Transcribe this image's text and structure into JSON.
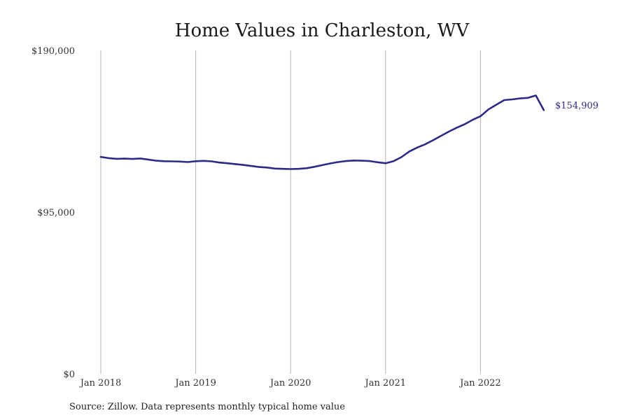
{
  "source_note": "Source: Zillow. Data represents monthly typical home value",
  "colors": {
    "line": "#2e2a87",
    "grid": "#b5b5b5",
    "text": "#222222"
  },
  "chart_data": {
    "type": "line",
    "title": "Home Values in Charleston, WV",
    "xlabel": "",
    "ylabel": "",
    "ylim": [
      0,
      190000
    ],
    "y_ticks": [
      0,
      95000,
      190000
    ],
    "y_tick_labels": [
      "$0",
      "$95,000",
      "$190,000"
    ],
    "x_ticks": [
      "2018-01",
      "2019-01",
      "2020-01",
      "2021-01",
      "2022-01"
    ],
    "x_tick_labels": [
      "Jan 2018",
      "Jan 2019",
      "Jan 2020",
      "Jan 2021",
      "Jan 2022"
    ],
    "grid": "vertical",
    "end_value_label": "$154,909",
    "series": [
      {
        "x": [
          "2018-01",
          "2018-02",
          "2018-03",
          "2018-04",
          "2018-05",
          "2018-06",
          "2018-07",
          "2018-08",
          "2018-09",
          "2018-10",
          "2018-11",
          "2018-12",
          "2019-01",
          "2019-02",
          "2019-03",
          "2019-04",
          "2019-05",
          "2019-06",
          "2019-07",
          "2019-08",
          "2019-09",
          "2019-10",
          "2019-11",
          "2019-12",
          "2020-01",
          "2020-02",
          "2020-03",
          "2020-04",
          "2020-05",
          "2020-06",
          "2020-07",
          "2020-08",
          "2020-09",
          "2020-10",
          "2020-11",
          "2020-12",
          "2021-01",
          "2021-02",
          "2021-03",
          "2021-04",
          "2021-05",
          "2021-06",
          "2021-07",
          "2021-08",
          "2021-09",
          "2021-10",
          "2021-11",
          "2021-12",
          "2022-01",
          "2022-02",
          "2022-03",
          "2022-04",
          "2022-05",
          "2022-06",
          "2022-07",
          "2022-08",
          "2022-09"
        ],
        "values": [
          127400,
          126700,
          126300,
          126400,
          126200,
          126500,
          125900,
          125200,
          124900,
          124800,
          124700,
          124400,
          124900,
          125100,
          124800,
          124100,
          123700,
          123200,
          122700,
          122100,
          121500,
          121200,
          120600,
          120400,
          120300,
          120400,
          120800,
          121600,
          122600,
          123600,
          124400,
          125000,
          125300,
          125200,
          125000,
          124300,
          123700,
          124900,
          127300,
          130600,
          132900,
          134800,
          137200,
          139800,
          142300,
          144600,
          146600,
          149200,
          151300,
          155300,
          158100,
          160800,
          161200,
          161800,
          162100,
          163500,
          154909
        ]
      }
    ]
  }
}
